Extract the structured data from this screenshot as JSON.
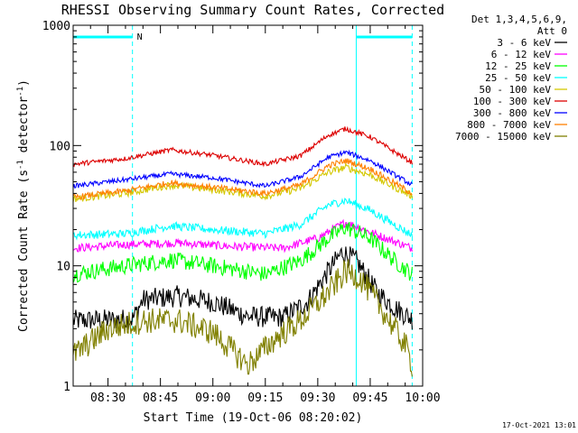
{
  "chart_data": {
    "type": "line",
    "title": "RHESSI Observing Summary Count Rates, Corrected",
    "xlabel": "Start Time (19-Oct-06 08:20:02)",
    "ylabel_prefix": "Corrected Count Rate (s",
    "ylabel_mid": " detector",
    "ylabel_suffix": ")",
    "ylabel_sup": "-1",
    "y_scale": "log",
    "ylim": [
      1,
      1000
    ],
    "xlim": [
      "08:20:02",
      "10:00"
    ],
    "x_ticks": [
      "08:30",
      "08:45",
      "09:00",
      "09:15",
      "09:30",
      "09:45",
      "10:00"
    ],
    "y_ticks": [
      "1",
      "10",
      "100",
      "1000"
    ],
    "grid": false,
    "legend_position": "top-right",
    "legend_header": [
      "Det 1,3,4,5,6,9,",
      "Att 0"
    ],
    "flag_label": "N",
    "vertical_markers": [
      {
        "time": "08:20:02",
        "color": "#00ffff",
        "style": "solid"
      },
      {
        "time": "08:37",
        "color": "#00ffff",
        "style": "dashed"
      },
      {
        "time": "09:41",
        "color": "#00ffff",
        "style": "solid"
      },
      {
        "time": "09:57",
        "color": "#00ffff",
        "style": "dashed"
      }
    ],
    "flag_bars": [
      {
        "from": "08:20:02",
        "to": "08:37",
        "color": "#00ffff"
      },
      {
        "from": "09:41",
        "to": "09:57",
        "color": "#00ffff"
      }
    ],
    "series": [
      {
        "name": "3 - 6 keV",
        "color": "#000000",
        "noise": 0.09,
        "points": [
          [
            "08:20:02",
            3.5
          ],
          [
            "08:37",
            3.6
          ],
          [
            "08:40",
            5.2
          ],
          [
            "08:50",
            5.6
          ],
          [
            "09:00",
            5.0
          ],
          [
            "09:10",
            3.8
          ],
          [
            "09:20",
            3.7
          ],
          [
            "09:27",
            5
          ],
          [
            "09:33",
            9
          ],
          [
            "09:37",
            13
          ],
          [
            "09:41",
            11
          ],
          [
            "09:47",
            6
          ],
          [
            "09:52",
            4.5
          ],
          [
            "09:57",
            3.6
          ]
        ]
      },
      {
        "name": "6 - 12 keV",
        "color": "#ff00ff",
        "noise": 0.035,
        "points": [
          [
            "08:20:02",
            14
          ],
          [
            "08:35",
            15
          ],
          [
            "08:50",
            15.5
          ],
          [
            "09:05",
            14.5
          ],
          [
            "09:20",
            14
          ],
          [
            "09:30",
            17
          ],
          [
            "09:38",
            23
          ],
          [
            "09:45",
            19
          ],
          [
            "09:57",
            14
          ]
        ]
      },
      {
        "name": "12 - 25 keV",
        "color": "#00ff00",
        "noise": 0.07,
        "points": [
          [
            "08:20:02",
            8.5
          ],
          [
            "08:35",
            10
          ],
          [
            "08:48",
            11.2
          ],
          [
            "09:00",
            10
          ],
          [
            "09:15",
            8.5
          ],
          [
            "09:25",
            11
          ],
          [
            "09:33",
            17
          ],
          [
            "09:38",
            21
          ],
          [
            "09:45",
            17
          ],
          [
            "09:52",
            11
          ],
          [
            "09:57",
            8.5
          ]
        ]
      },
      {
        "name": "25 - 50 keV",
        "color": "#00ffff",
        "noise": 0.035,
        "points": [
          [
            "08:20:02",
            18
          ],
          [
            "08:35",
            18.5
          ],
          [
            "08:48",
            21.5
          ],
          [
            "09:00",
            20
          ],
          [
            "09:15",
            18.5
          ],
          [
            "09:25",
            22
          ],
          [
            "09:33",
            32
          ],
          [
            "09:38",
            35
          ],
          [
            "09:45",
            29
          ],
          [
            "09:57",
            18
          ]
        ]
      },
      {
        "name": "50 - 100 keV",
        "color": "#d4c800",
        "noise": 0.03,
        "points": [
          [
            "08:20:02",
            36
          ],
          [
            "08:35",
            40
          ],
          [
            "08:48",
            47
          ],
          [
            "09:00",
            43
          ],
          [
            "09:15",
            38
          ],
          [
            "09:25",
            44
          ],
          [
            "09:33",
            60
          ],
          [
            "09:38",
            66
          ],
          [
            "09:45",
            57
          ],
          [
            "09:57",
            38
          ]
        ]
      },
      {
        "name": "100 - 300 keV",
        "color": "#dd0000",
        "noise": 0.02,
        "points": [
          [
            "08:20:02",
            70
          ],
          [
            "08:35",
            78
          ],
          [
            "08:48",
            92
          ],
          [
            "09:00",
            83
          ],
          [
            "09:15",
            70
          ],
          [
            "09:25",
            82
          ],
          [
            "09:33",
            122
          ],
          [
            "09:38",
            138
          ],
          [
            "09:45",
            118
          ],
          [
            "09:57",
            72
          ]
        ]
      },
      {
        "name": "300 - 800 keV",
        "color": "#0000ff",
        "noise": 0.02,
        "points": [
          [
            "08:20:02",
            46
          ],
          [
            "08:35",
            52
          ],
          [
            "08:48",
            58
          ],
          [
            "09:00",
            54
          ],
          [
            "09:15",
            46
          ],
          [
            "09:25",
            55
          ],
          [
            "09:33",
            80
          ],
          [
            "09:38",
            88
          ],
          [
            "09:45",
            75
          ],
          [
            "09:57",
            47
          ]
        ]
      },
      {
        "name": "800 - 7000 keV",
        "color": "#ff8000",
        "noise": 0.025,
        "points": [
          [
            "08:20:02",
            37
          ],
          [
            "08:35",
            42
          ],
          [
            "08:48",
            49
          ],
          [
            "09:00",
            45
          ],
          [
            "09:15",
            40
          ],
          [
            "09:25",
            47
          ],
          [
            "09:33",
            68
          ],
          [
            "09:38",
            75
          ],
          [
            "09:45",
            64
          ],
          [
            "09:57",
            40
          ]
        ]
      },
      {
        "name": "7000 - 15000 keV",
        "color": "#808000",
        "noise": 0.11,
        "points": [
          [
            "08:20:02",
            1.8
          ],
          [
            "08:30",
            3
          ],
          [
            "08:40",
            3.5
          ],
          [
            "08:50",
            3.5
          ],
          [
            "09:00",
            2.8
          ],
          [
            "09:10",
            1.5
          ],
          [
            "09:18",
            2.5
          ],
          [
            "09:25",
            3.5
          ],
          [
            "09:33",
            6
          ],
          [
            "09:38",
            9
          ],
          [
            "09:42",
            8
          ],
          [
            "09:48",
            4.5
          ],
          [
            "09:55",
            2.2
          ],
          [
            "09:57",
            1.5
          ]
        ]
      }
    ]
  },
  "footer": {
    "timestamp": "17-Oct-2021 13:01"
  }
}
